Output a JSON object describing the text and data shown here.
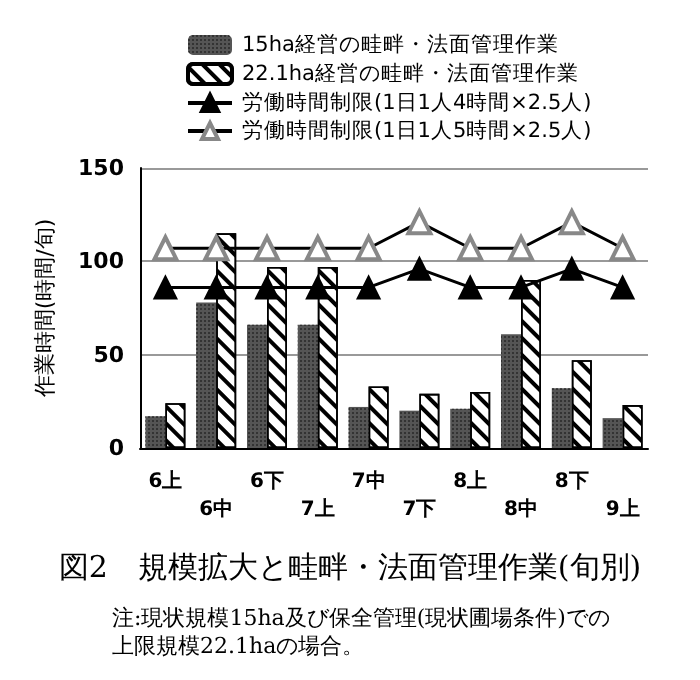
{
  "chart_data": {
    "type": "bar",
    "title": "図2　規模拡大と畦畔・法面管理作業(旬別)",
    "ylabel": "作業時間(時間/旬)",
    "categories": [
      "6上",
      "6中",
      "6下",
      "7上",
      "7中",
      "7下",
      "8上",
      "8中",
      "8下",
      "9上"
    ],
    "series": [
      {
        "name": "15ha経営の畦畔・法面管理作業",
        "color": "#555555",
        "values": [
          17,
          78,
          66,
          66,
          22,
          20,
          21,
          61,
          32,
          16
        ]
      },
      {
        "name": "22.1ha経営の畦畔・法面管理作業",
        "color": "#ffffff",
        "values": [
          24,
          115,
          97,
          97,
          33,
          29,
          30,
          90,
          47,
          23
        ]
      },
      {
        "name": "労働時間制限(1日1人4時間×2.5人)",
        "type": "line",
        "color": "#000000",
        "marker": "triangle",
        "values": [
          86,
          86,
          86,
          86,
          86,
          96,
          86,
          86,
          96,
          86
        ]
      },
      {
        "name": "労働時間制限(1日1人5時間×2.5人)",
        "type": "line",
        "color": "#000000",
        "marker": "triangle",
        "values": [
          107,
          107,
          107,
          107,
          107,
          121,
          107,
          107,
          121,
          107
        ]
      }
    ],
    "ylim": [
      0,
      150
    ],
    "yticks": [
      0,
      50,
      100,
      150
    ],
    "grid": "y",
    "legend": "top",
    "line_style": "solid",
    "annotations": [
      "注:現状規模15ha及び保全管理(現状圃場条件)での上限規模22.1haの場合。"
    ]
  }
}
